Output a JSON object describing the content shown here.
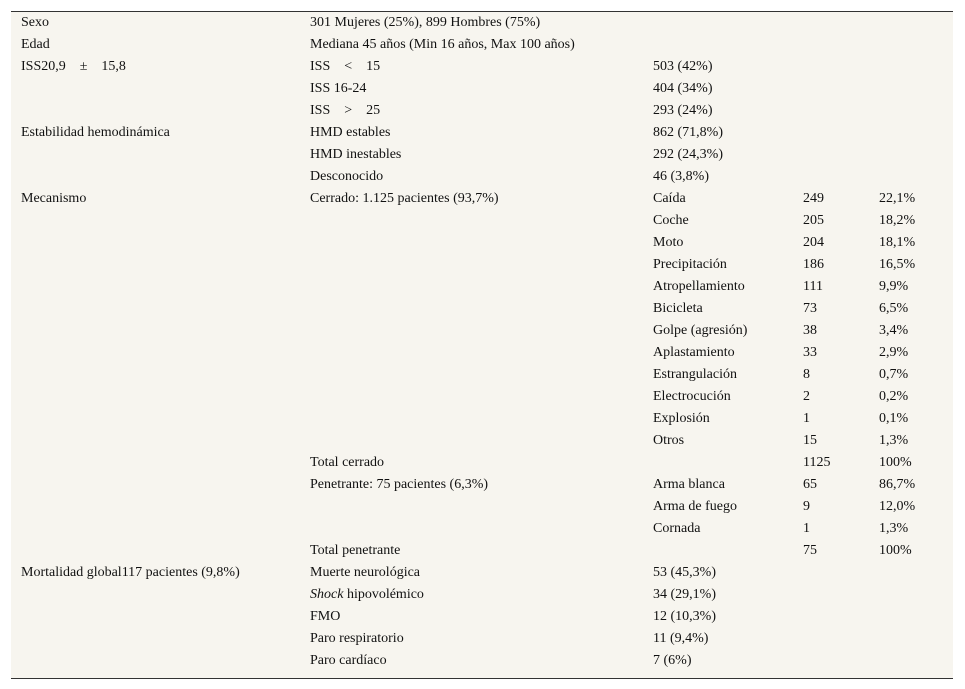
{
  "table": {
    "rows": [
      [
        "Sexo",
        "301 Mujeres (25%), 899 Hombres (75%)",
        null,
        null,
        null
      ],
      [
        "Edad",
        "Mediana 45 años (Min 16 años, Max 100 años)",
        null,
        null,
        null
      ],
      [
        "ISS20,9    ±    15,8",
        "ISS    <    15",
        "503 (42%)",
        null,
        null
      ],
      [
        null,
        "ISS 16-24",
        "404 (34%)",
        null,
        null
      ],
      [
        null,
        "ISS    >    25",
        "293 (24%)",
        null,
        null
      ],
      [
        "Estabilidad hemodinámica",
        "HMD estables",
        "862 (71,8%)",
        null,
        null
      ],
      [
        null,
        "HMD inestables",
        "292 (24,3%)",
        null,
        null
      ],
      [
        null,
        "Desconocido",
        "46 (3,8%)",
        null,
        null
      ],
      [
        "Mecanismo",
        "Cerrado: 1.125 pacientes (93,7%)",
        "Caída",
        "249",
        "22,1%"
      ],
      [
        null,
        null,
        "Coche",
        "205",
        "18,2%"
      ],
      [
        null,
        null,
        "Moto",
        "204",
        "18,1%"
      ],
      [
        null,
        null,
        "Precipitación",
        "186",
        "16,5%"
      ],
      [
        null,
        null,
        "Atropellamiento",
        "111",
        "9,9%"
      ],
      [
        null,
        null,
        "Bicicleta",
        "73",
        "6,5%"
      ],
      [
        null,
        null,
        "Golpe (agresión)",
        "38",
        "3,4%"
      ],
      [
        null,
        null,
        "Aplastamiento",
        "33",
        "2,9%"
      ],
      [
        null,
        null,
        "Estrangulación",
        "8",
        "0,7%"
      ],
      [
        null,
        null,
        "Electrocución",
        "2",
        "0,2%"
      ],
      [
        null,
        null,
        "Explosión",
        "1",
        "0,1%"
      ],
      [
        null,
        null,
        "Otros",
        "15",
        "1,3%"
      ],
      [
        null,
        "Total cerrado",
        null,
        "1125",
        "100%"
      ],
      [
        null,
        "Penetrante: 75 pacientes (6,3%)",
        "Arma blanca",
        "65",
        "86,7%"
      ],
      [
        null,
        null,
        "Arma de fuego",
        "9",
        "12,0%"
      ],
      [
        null,
        null,
        "Cornada",
        "1",
        "1,3%"
      ],
      [
        null,
        "Total penetrante",
        null,
        "75",
        "100%"
      ],
      [
        "Mortalidad global117 pacientes (9,8%)",
        "Muerte neurológica",
        "53 (45,3%)",
        null,
        null
      ],
      [
        null,
        {
          "em": "Shock",
          "text": " hipovolémico"
        },
        "34 (29,1%)",
        null,
        null
      ],
      [
        null,
        "FMO",
        "12 (10,3%)",
        null,
        null
      ],
      [
        null,
        "Paro respiratorio",
        "11 (9,4%)",
        null,
        null
      ],
      [
        null,
        "Paro cardíaco",
        "7 (6%)",
        null,
        null
      ]
    ]
  }
}
